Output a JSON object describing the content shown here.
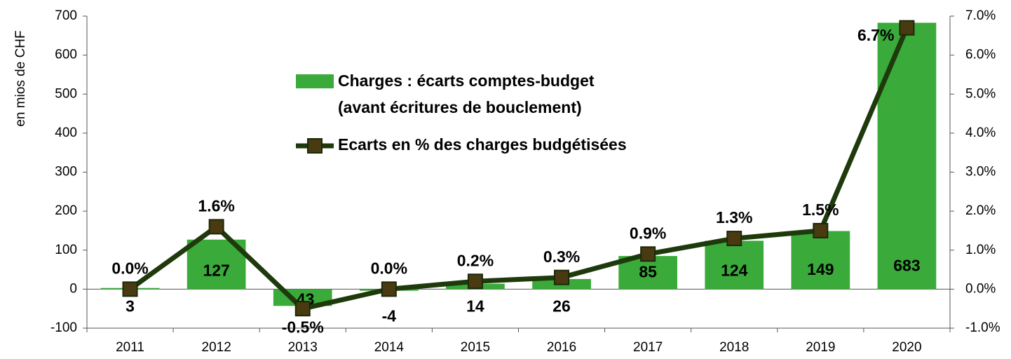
{
  "chart_data": {
    "type": "bar",
    "y_label": "en mios de CHF",
    "categories": [
      "2011",
      "2012",
      "2013",
      "2014",
      "2015",
      "2016",
      "2017",
      "2018",
      "2019",
      "2020"
    ],
    "series": [
      {
        "name": "Charges : écarts comptes-budget",
        "name_line2": "(avant écritures de bouclement)",
        "color": "#3aaa3a",
        "type": "bar",
        "values": [
          3,
          127,
          -43,
          -4,
          14,
          26,
          85,
          124,
          149,
          683
        ]
      },
      {
        "name": "Ecarts en % des charges budgétisées",
        "color": "#1e3a0c",
        "marker_color": "#4a3a12",
        "type": "line",
        "axis": "y2",
        "values": [
          0.0,
          1.6,
          -0.5,
          0.0,
          0.2,
          0.3,
          0.9,
          1.3,
          1.5,
          6.7
        ],
        "value_labels": [
          "0.0%",
          "1.6%",
          "-0.5%",
          "0.0%",
          "0.2%",
          "0.3%",
          "0.9%",
          "1.3%",
          "1.5%",
          "6.7%"
        ]
      }
    ],
    "ylim": [
      -100,
      700
    ],
    "yticks": [
      -100,
      0,
      100,
      200,
      300,
      400,
      500,
      600,
      700
    ],
    "y2lim": [
      -1,
      7
    ],
    "y2ticks": [
      {
        "value": -1,
        "label": "-1.0%"
      },
      {
        "value": 0,
        "label": "0.0%"
      },
      {
        "value": 1,
        "label": "1.0%"
      },
      {
        "value": 2,
        "label": "2.0%"
      },
      {
        "value": 3,
        "label": "3.0%"
      },
      {
        "value": 4,
        "label": "4.0%"
      },
      {
        "value": 5,
        "label": "5.0%"
      },
      {
        "value": 6,
        "label": "6.0%"
      },
      {
        "value": 7,
        "label": "7.0%"
      }
    ],
    "grid": false
  }
}
